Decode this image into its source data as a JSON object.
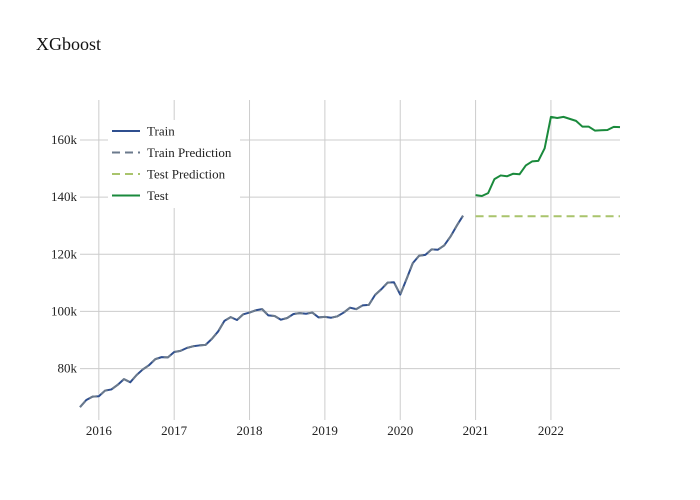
{
  "chart_data": {
    "type": "line",
    "title": "XGboost",
    "xlabel": "",
    "ylabel": "",
    "xlim": [
      "2015-10",
      "2022-12"
    ],
    "ylim": [
      62000,
      174000
    ],
    "x_ticks": [
      "2016",
      "2017",
      "2018",
      "2019",
      "2020",
      "2021",
      "2022"
    ],
    "y_ticks": [
      {
        "value": 80000,
        "label": "80k"
      },
      {
        "value": 100000,
        "label": "100k"
      },
      {
        "value": 120000,
        "label": "120k"
      },
      {
        "value": 140000,
        "label": "140k"
      },
      {
        "value": 160000,
        "label": "160k"
      }
    ],
    "grid": true,
    "legend_position": "top-left",
    "series": [
      {
        "name": "Train",
        "style": "solid",
        "color": "#2f4f8f",
        "x": [
          "2015-10",
          "2015-11",
          "2015-12",
          "2016-01",
          "2016-02",
          "2016-03",
          "2016-04",
          "2016-05",
          "2016-06",
          "2016-07",
          "2016-08",
          "2016-09",
          "2016-10",
          "2016-11",
          "2016-12",
          "2017-01",
          "2017-02",
          "2017-03",
          "2017-04",
          "2017-05",
          "2017-06",
          "2017-07",
          "2017-08",
          "2017-09",
          "2017-10",
          "2017-11",
          "2017-12",
          "2018-01",
          "2018-02",
          "2018-03",
          "2018-04",
          "2018-05",
          "2018-06",
          "2018-07",
          "2018-08",
          "2018-09",
          "2018-10",
          "2018-11",
          "2018-12",
          "2019-01",
          "2019-02",
          "2019-03",
          "2019-04",
          "2019-05",
          "2019-06",
          "2019-07",
          "2019-08",
          "2019-09",
          "2019-10",
          "2019-11",
          "2019-12",
          "2020-01",
          "2020-02",
          "2020-03",
          "2020-04",
          "2020-05",
          "2020-06",
          "2020-07",
          "2020-08",
          "2020-09",
          "2020-10",
          "2020-11",
          "2020-12"
        ],
        "values": [
          66500,
          69000,
          70200,
          70300,
          72300,
          72700,
          74300,
          76300,
          75200,
          77700,
          79700,
          81200,
          83300,
          84000,
          83900,
          85800,
          86200,
          87200,
          87800,
          88100,
          88300,
          90400,
          93000,
          96700,
          98000,
          97000,
          99000,
          99600,
          100400,
          100800,
          98600,
          98400,
          97100,
          97700,
          99100,
          99400,
          99200,
          99600,
          97900,
          98100,
          97800,
          98300,
          99600,
          101300,
          100800,
          102100,
          102300,
          105800,
          107800,
          110100,
          110200,
          105900,
          111300,
          116900,
          119500,
          119800,
          121700,
          121600,
          123100,
          126200,
          130000,
          133500,
          null
        ]
      },
      {
        "name": "Train Prediction",
        "style": "dashed",
        "color": "#6b7a8c",
        "x": [
          "2015-10",
          "2015-11",
          "2015-12",
          "2016-01",
          "2016-02",
          "2016-03",
          "2016-04",
          "2016-05",
          "2016-06",
          "2016-07",
          "2016-08",
          "2016-09",
          "2016-10",
          "2016-11",
          "2016-12",
          "2017-01",
          "2017-02",
          "2017-03",
          "2017-04",
          "2017-05",
          "2017-06",
          "2017-07",
          "2017-08",
          "2017-09",
          "2017-10",
          "2017-11",
          "2017-12",
          "2018-01",
          "2018-02",
          "2018-03",
          "2018-04",
          "2018-05",
          "2018-06",
          "2018-07",
          "2018-08",
          "2018-09",
          "2018-10",
          "2018-11",
          "2018-12",
          "2019-01",
          "2019-02",
          "2019-03",
          "2019-04",
          "2019-05",
          "2019-06",
          "2019-07",
          "2019-08",
          "2019-09",
          "2019-10",
          "2019-11",
          "2019-12",
          "2020-01",
          "2020-02",
          "2020-03",
          "2020-04",
          "2020-05",
          "2020-06",
          "2020-07",
          "2020-08",
          "2020-09",
          "2020-10",
          "2020-11",
          "2020-12"
        ],
        "values": [
          66500,
          69000,
          70200,
          70300,
          72300,
          72700,
          74300,
          76300,
          75200,
          77700,
          79700,
          81200,
          83300,
          84000,
          83900,
          85800,
          86200,
          87200,
          87800,
          88100,
          88300,
          90400,
          93000,
          96700,
          98000,
          97000,
          99000,
          99600,
          100400,
          100800,
          98600,
          98400,
          97100,
          97700,
          99100,
          99400,
          99200,
          99600,
          97900,
          98100,
          97800,
          98300,
          99600,
          101300,
          100800,
          102100,
          102300,
          105800,
          107800,
          110100,
          110200,
          105900,
          111300,
          116900,
          119500,
          119800,
          121700,
          121600,
          123100,
          126200,
          130000,
          133500,
          null
        ]
      },
      {
        "name": "Test Prediction",
        "style": "dashed",
        "color": "#a9c46c",
        "x": [
          "2021-01",
          "2021-02",
          "2021-03",
          "2021-04",
          "2021-05",
          "2021-06",
          "2021-07",
          "2021-08",
          "2021-09",
          "2021-10",
          "2021-11",
          "2021-12",
          "2022-01",
          "2022-02",
          "2022-03",
          "2022-04",
          "2022-05",
          "2022-06",
          "2022-07",
          "2022-08",
          "2022-09",
          "2022-10",
          "2022-11",
          "2022-12"
        ],
        "values": [
          133300,
          133300,
          133300,
          133300,
          133300,
          133300,
          133300,
          133300,
          133300,
          133300,
          133300,
          133300,
          133300,
          133300,
          133300,
          133300,
          133300,
          133300,
          133300,
          133300,
          133300,
          133300,
          133300,
          133300
        ]
      },
      {
        "name": "Test",
        "style": "solid",
        "color": "#1a8a3c",
        "x": [
          "2021-01",
          "2021-02",
          "2021-03",
          "2021-04",
          "2021-05",
          "2021-06",
          "2021-07",
          "2021-08",
          "2021-09",
          "2021-10",
          "2021-11",
          "2021-12",
          "2022-01",
          "2022-02",
          "2022-03",
          "2022-04",
          "2022-05",
          "2022-06",
          "2022-07",
          "2022-08",
          "2022-09",
          "2022-10",
          "2022-11",
          "2022-12"
        ],
        "values": [
          140700,
          140400,
          141400,
          146300,
          147600,
          147300,
          148200,
          148000,
          151100,
          152500,
          152700,
          157100,
          168100,
          167700,
          168100,
          167400,
          166700,
          164700,
          164700,
          163300,
          163400,
          163500,
          164600,
          164500
        ]
      }
    ]
  }
}
